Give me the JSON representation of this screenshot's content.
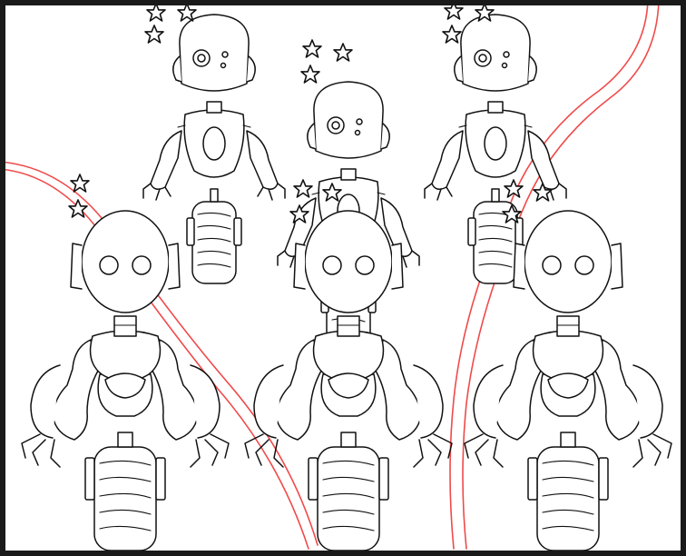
{
  "canvas": {
    "background": "#ffffff",
    "frame_color": "#1a1a1a",
    "line_color": "#111111",
    "guide_color": "#f04a4a"
  },
  "illustration": {
    "robot_count": 6,
    "back_row_robots": 3,
    "front_row_robots": 3,
    "sparkle_icon": "star-icon",
    "guide_line_icon": "red-guide-line"
  }
}
